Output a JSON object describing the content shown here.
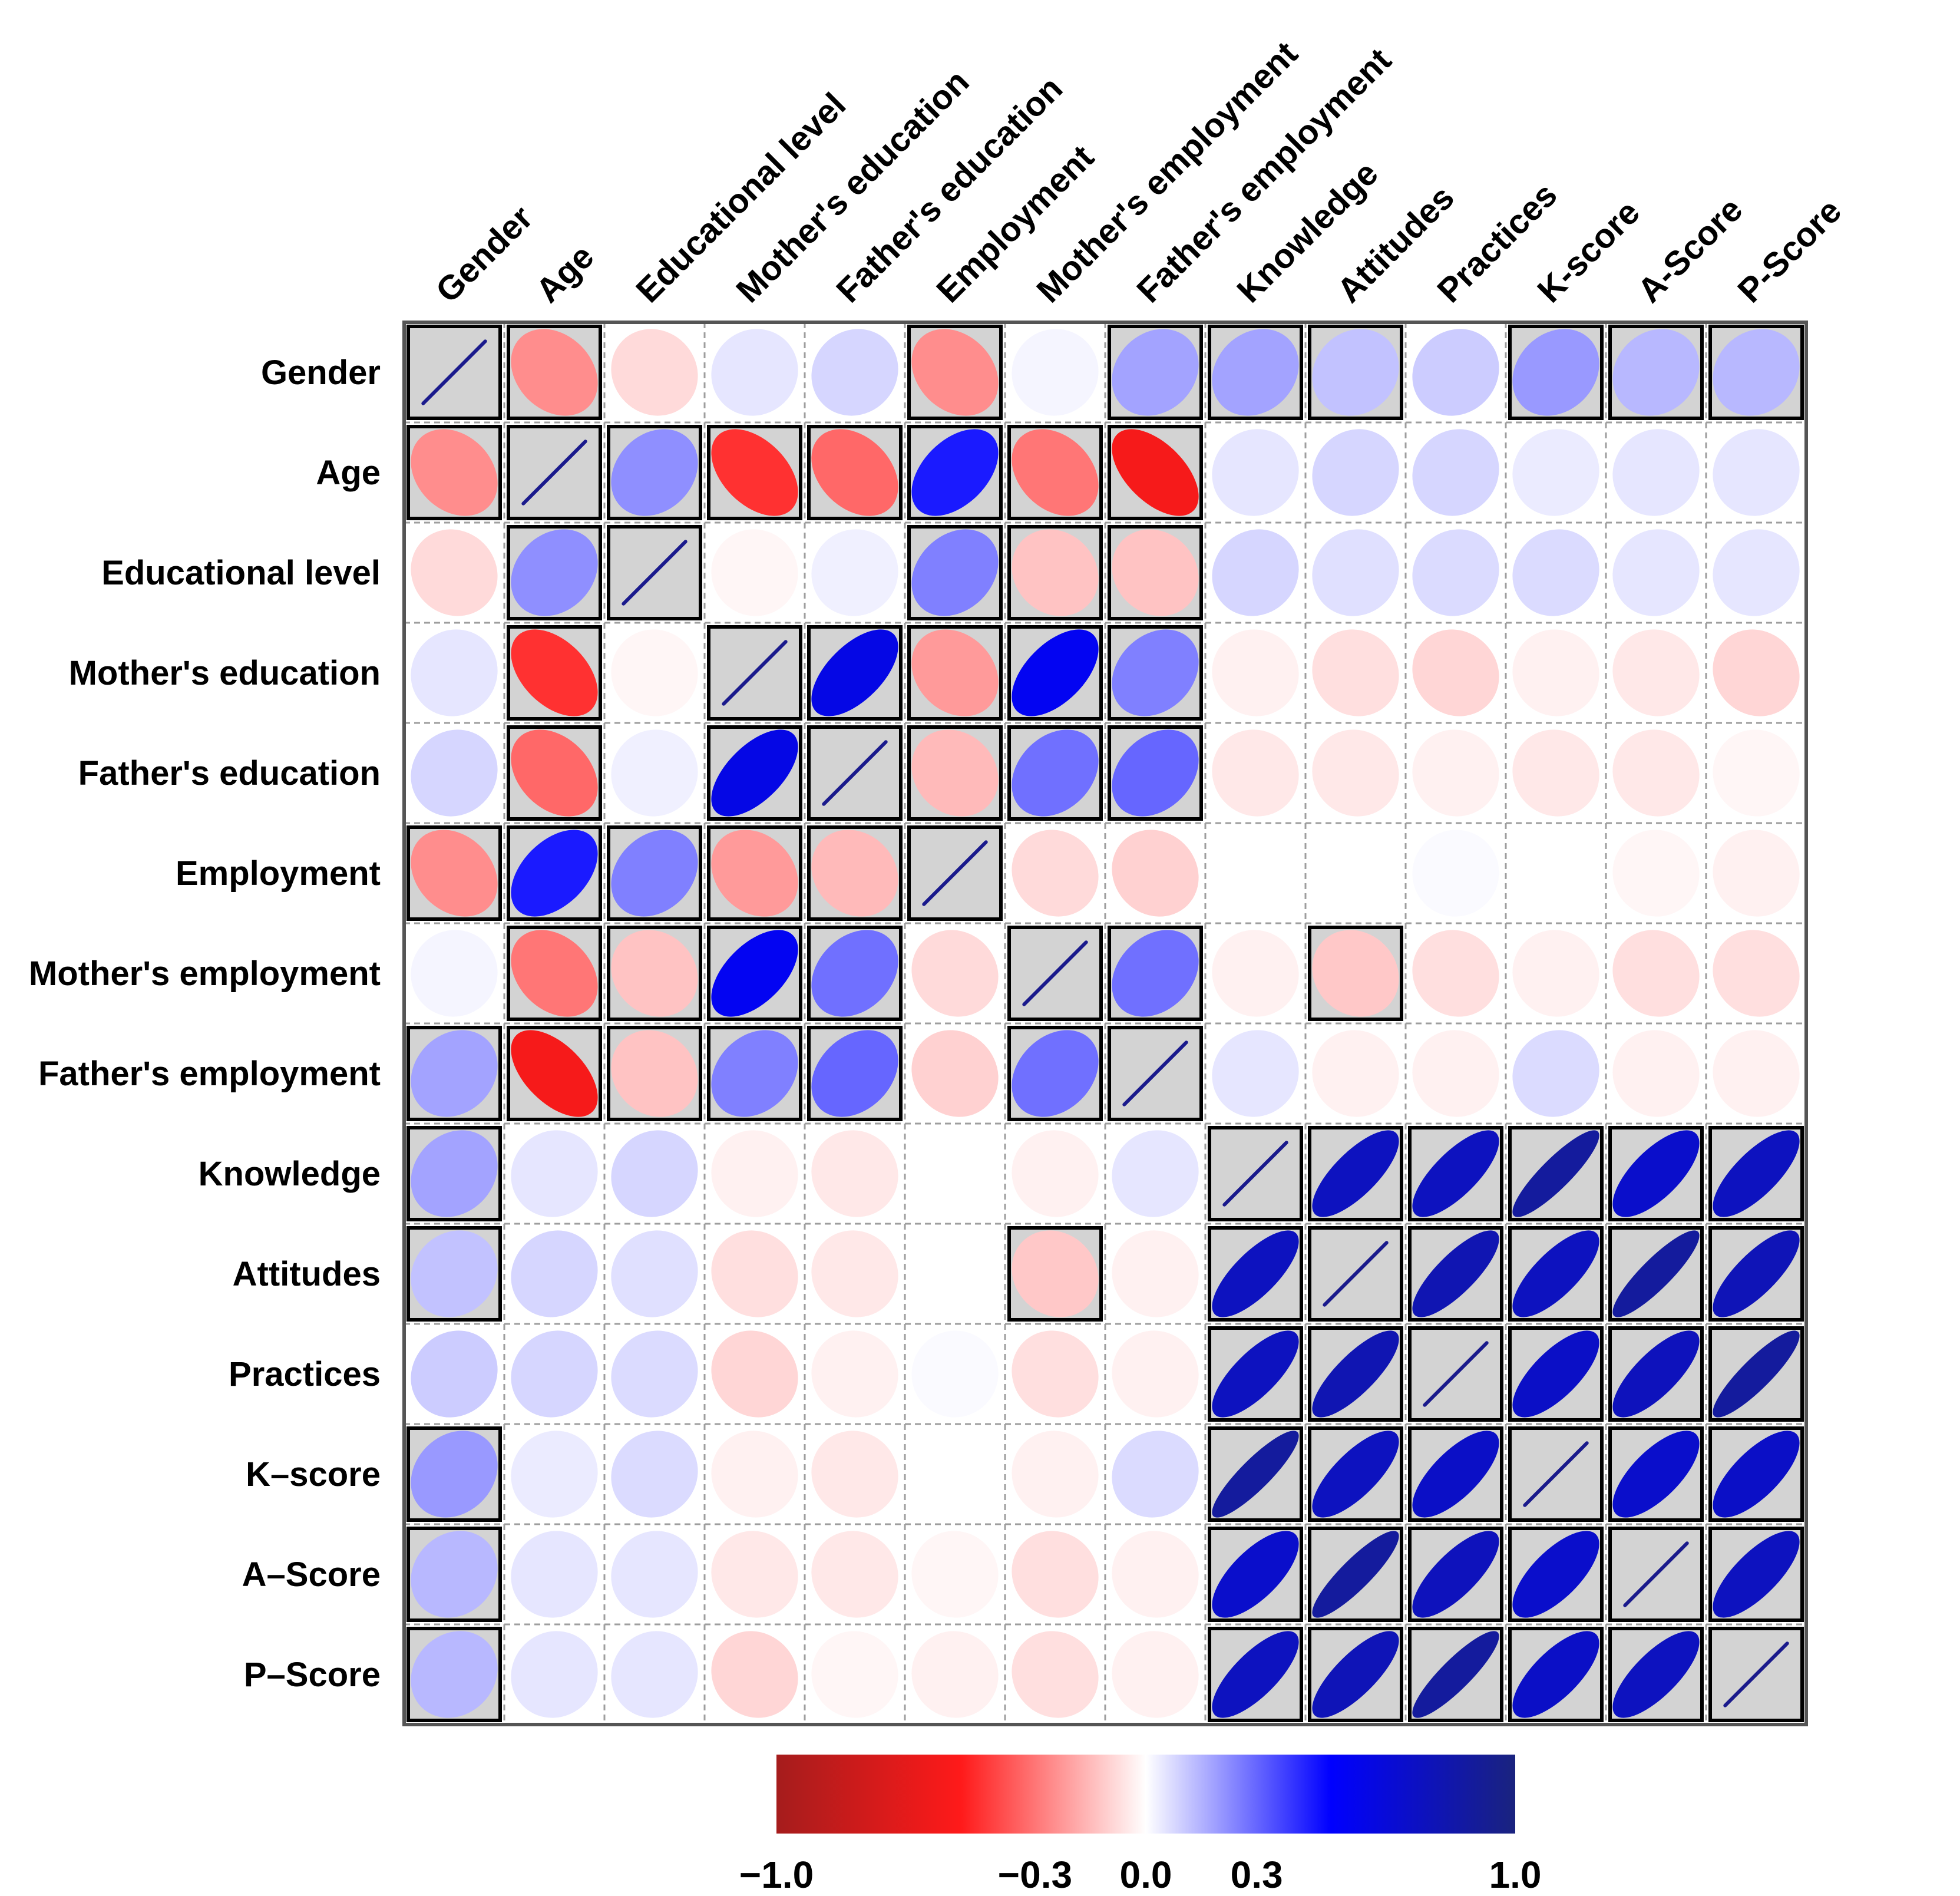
{
  "chart_data": {
    "type": "correlogram",
    "title": "",
    "variables": [
      "Gender",
      "Age",
      "Educational level",
      "Mother's education",
      "Father's education",
      "Employment",
      "Mother's employment",
      "Father's employment",
      "Knowledge",
      "Attitudes",
      "Practices",
      "K-score",
      "A-Score",
      "P-Score"
    ],
    "row_labels": [
      "Gender",
      "Age",
      "Educational level",
      "Mother's education",
      "Father's education",
      "Employment",
      "Mother's employment",
      "Father's employment",
      "Knowledge",
      "Attitudes",
      "Practices",
      "K–score",
      "A–Score",
      "P–Score"
    ],
    "column_labels": [
      "Gender",
      "Age",
      "Educational level",
      "Mother's education",
      "Father's education",
      "Employment",
      "Mother's employment",
      "Father's employment",
      "Knowledge",
      "Attitudes",
      "Practices",
      "K-score",
      "A-Score",
      "P-Score"
    ],
    "matrix": [
      [
        1,
        -0.25,
        -0.08,
        0.05,
        0.08,
        -0.25,
        0.02,
        0.18,
        0.18,
        0.12,
        0.1,
        0.2,
        0.14,
        0.14
      ],
      [
        -0.25,
        1,
        0.22,
        -0.45,
        -0.33,
        0.45,
        -0.3,
        -0.55,
        0.05,
        0.08,
        0.08,
        0.04,
        0.05,
        0.05
      ],
      [
        -0.08,
        0.22,
        1,
        -0.02,
        0.03,
        0.25,
        -0.13,
        -0.13,
        0.08,
        0.06,
        0.07,
        0.07,
        0.05,
        0.05
      ],
      [
        0.05,
        -0.45,
        -0.02,
        1,
        0.6,
        -0.22,
        0.55,
        0.25,
        -0.03,
        -0.07,
        -0.09,
        -0.03,
        -0.05,
        -0.09
      ],
      [
        0.08,
        -0.33,
        0.03,
        0.6,
        1,
        -0.15,
        0.28,
        0.3,
        -0.05,
        -0.05,
        -0.03,
        -0.05,
        -0.05,
        -0.02
      ],
      [
        -0.25,
        0.45,
        0.25,
        -0.22,
        -0.15,
        1,
        -0.08,
        -0.1,
        0.0,
        0.0,
        0.01,
        0.0,
        -0.02,
        -0.03
      ],
      [
        0.02,
        -0.3,
        -0.13,
        0.55,
        0.28,
        -0.08,
        1,
        0.28,
        -0.03,
        -0.12,
        -0.07,
        -0.03,
        -0.07,
        -0.07
      ],
      [
        0.18,
        -0.55,
        -0.13,
        0.25,
        0.3,
        -0.1,
        0.28,
        1,
        0.05,
        -0.03,
        -0.03,
        0.07,
        -0.03,
        -0.03
      ],
      [
        0.18,
        0.05,
        0.08,
        -0.03,
        -0.05,
        0.0,
        -0.03,
        0.05,
        1,
        0.75,
        0.75,
        0.88,
        0.7,
        0.75
      ],
      [
        0.12,
        0.08,
        0.06,
        -0.07,
        -0.05,
        0.0,
        -0.12,
        -0.03,
        0.75,
        1,
        0.8,
        0.75,
        0.88,
        0.78
      ],
      [
        0.1,
        0.08,
        0.07,
        -0.09,
        -0.03,
        0.01,
        -0.07,
        -0.03,
        0.75,
        0.8,
        1,
        0.72,
        0.76,
        0.88
      ],
      [
        0.2,
        0.04,
        0.07,
        -0.03,
        -0.05,
        0.0,
        -0.03,
        0.07,
        0.88,
        0.75,
        0.72,
        1,
        0.7,
        0.72
      ],
      [
        0.14,
        0.05,
        0.05,
        -0.05,
        -0.05,
        -0.02,
        -0.07,
        -0.03,
        0.7,
        0.88,
        0.76,
        0.7,
        1,
        0.75
      ],
      [
        0.14,
        0.05,
        0.05,
        -0.09,
        -0.02,
        -0.03,
        -0.07,
        -0.03,
        0.75,
        0.78,
        0.88,
        0.72,
        0.75,
        1
      ]
    ],
    "significant": [
      [
        1,
        1,
        0,
        0,
        0,
        1,
        0,
        1,
        1,
        1,
        0,
        1,
        1,
        1
      ],
      [
        1,
        1,
        1,
        1,
        1,
        1,
        1,
        1,
        0,
        0,
        0,
        0,
        0,
        0
      ],
      [
        0,
        1,
        1,
        0,
        0,
        1,
        1,
        1,
        0,
        0,
        0,
        0,
        0,
        0
      ],
      [
        0,
        1,
        0,
        1,
        1,
        1,
        1,
        1,
        0,
        0,
        0,
        0,
        0,
        0
      ],
      [
        0,
        1,
        0,
        1,
        1,
        1,
        1,
        1,
        0,
        0,
        0,
        0,
        0,
        0
      ],
      [
        1,
        1,
        1,
        1,
        1,
        1,
        0,
        0,
        0,
        0,
        0,
        0,
        0,
        0
      ],
      [
        0,
        1,
        1,
        1,
        1,
        0,
        1,
        1,
        0,
        1,
        0,
        0,
        0,
        0
      ],
      [
        1,
        1,
        1,
        1,
        1,
        0,
        1,
        1,
        0,
        0,
        0,
        0,
        0,
        0
      ],
      [
        1,
        0,
        0,
        0,
        0,
        0,
        0,
        0,
        1,
        1,
        1,
        1,
        1,
        1
      ],
      [
        1,
        0,
        0,
        0,
        0,
        0,
        1,
        0,
        1,
        1,
        1,
        1,
        1,
        1
      ],
      [
        0,
        0,
        0,
        0,
        0,
        0,
        0,
        0,
        1,
        1,
        1,
        1,
        1,
        1
      ],
      [
        1,
        0,
        0,
        0,
        0,
        0,
        0,
        0,
        1,
        1,
        1,
        1,
        1,
        1
      ],
      [
        1,
        0,
        0,
        0,
        0,
        0,
        0,
        0,
        1,
        1,
        1,
        1,
        1,
        1
      ],
      [
        1,
        0,
        0,
        0,
        0,
        0,
        0,
        0,
        1,
        1,
        1,
        1,
        1,
        1
      ]
    ],
    "color_scale": {
      "ticks": [
        -1.0,
        -0.3,
        0.0,
        0.3,
        1.0
      ],
      "tick_labels": [
        "−1.0",
        "−0.3",
        "0.0",
        "0.3",
        "1.0"
      ],
      "colors": {
        "neg_dark": "#a51c1c",
        "neg": "#ff1a1a",
        "zero": "#ffffff",
        "pos": "#0000ff",
        "pos_dark": "#1a237e"
      }
    },
    "significance_highlight": "#d3d3d3",
    "grid": true
  }
}
